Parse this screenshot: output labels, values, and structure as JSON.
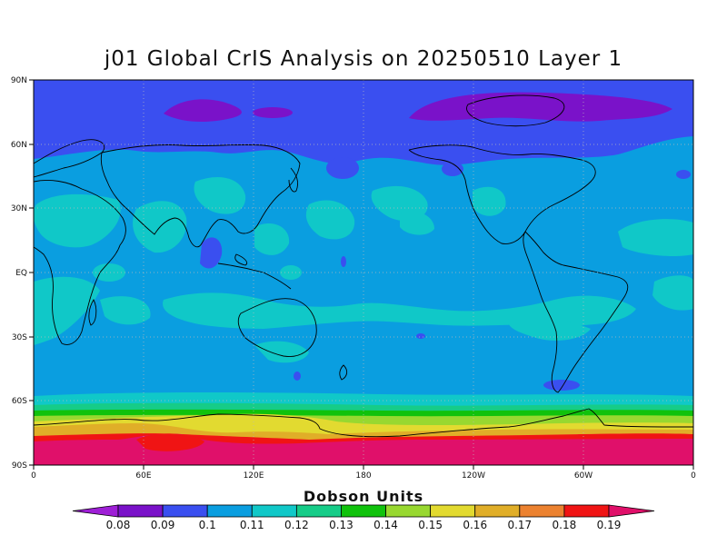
{
  "title": "j01 Global CrIS Analysis on 20250510 Layer 1",
  "x_ticks": [
    "0",
    "60E",
    "120E",
    "180",
    "120W",
    "60W",
    "0"
  ],
  "y_ticks": [
    "90N",
    "60N",
    "30N",
    "EQ",
    "30S",
    "60S",
    "90S"
  ],
  "colorbar": {
    "title": "Dobson Units",
    "labels": [
      "0.08",
      "0.09",
      "0.1",
      "0.11",
      "0.12",
      "0.13",
      "0.14",
      "0.15",
      "0.16",
      "0.17",
      "0.18",
      "0.19"
    ],
    "colors": [
      "#9e1fd6",
      "#7a12c9",
      "#3a4ff0",
      "#0a9ee0",
      "#10c8c8",
      "#16cc88",
      "#10c20c",
      "#98d830",
      "#e2da30",
      "#e0ae28",
      "#ec8230",
      "#f01414",
      "#e0106a"
    ]
  },
  "map_colors": {
    "polar_north_low": "#7a12c9",
    "north_high_lat": "#3a4ff0",
    "background_mid": "#0a9ee0",
    "patches": "#10c8c8",
    "south_band_1": "#16cc88",
    "south_band_2": "#10c20c",
    "south_band_3": "#98d830",
    "antarctic_yellow": "#e2da30",
    "antarctic_orange": "#e0ae28",
    "antarctic_red": "#f01414",
    "antarctic_pink": "#e0106a"
  }
}
